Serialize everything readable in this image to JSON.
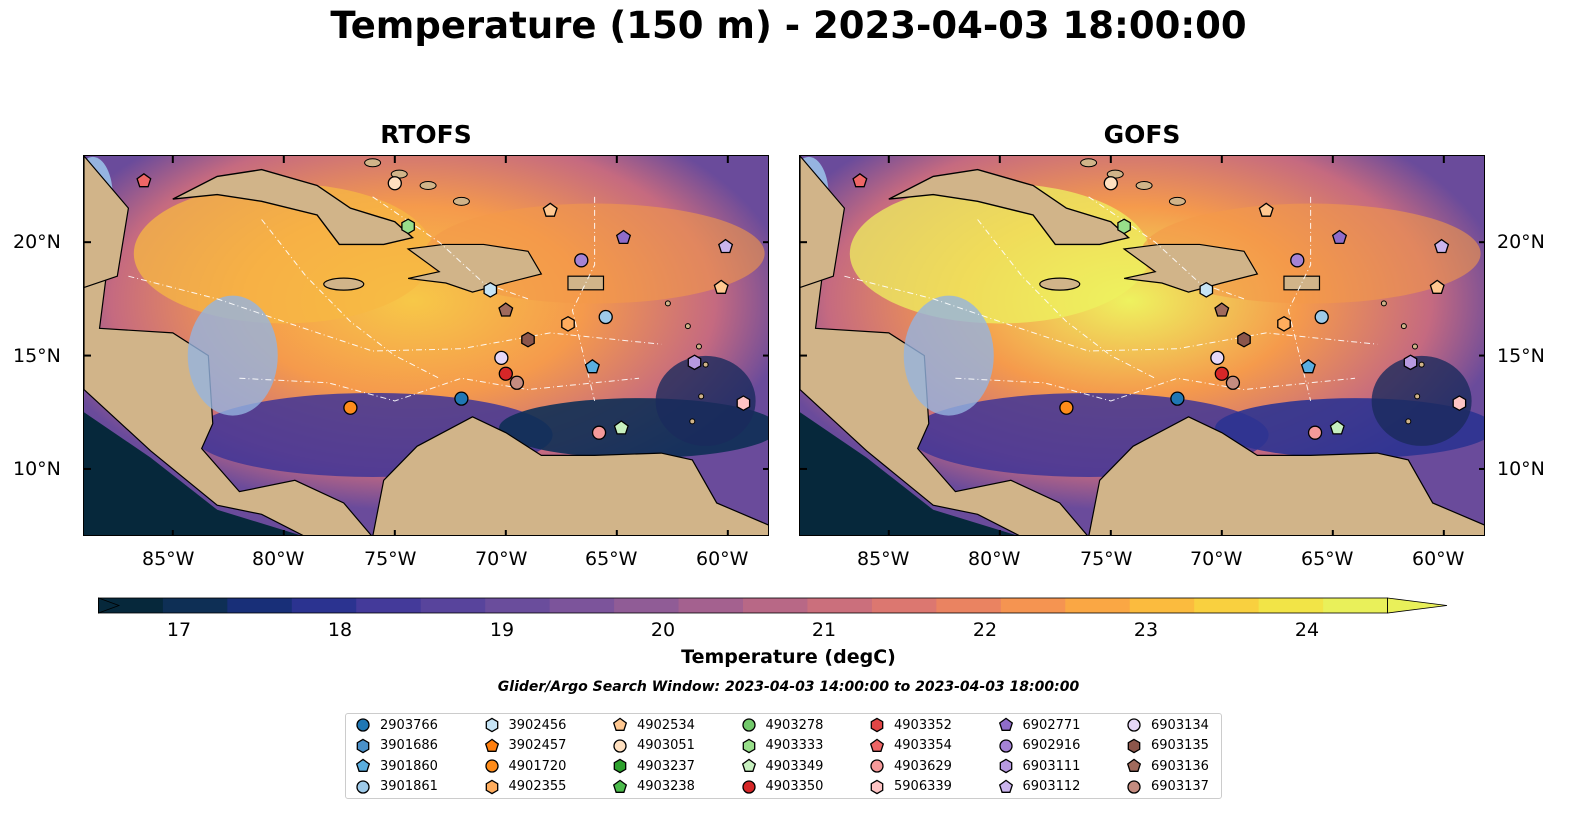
{
  "title": "Temperature (150 m) - 2023-04-03 18:00:00",
  "panels": [
    {
      "name": "RTOFS"
    },
    {
      "name": "GOFS"
    }
  ],
  "axes": {
    "lat_labels": [
      "20°N",
      "15°N",
      "10°N"
    ],
    "lon_labels": [
      "85°W",
      "80°W",
      "75°W",
      "70°W",
      "65°W",
      "60°W"
    ],
    "lon_range": [
      -89,
      -58.1
    ],
    "lat_range": [
      7.0,
      23.8
    ]
  },
  "colorbar": {
    "label": "Temperature (degC)",
    "ticks": [
      "17",
      "18",
      "19",
      "20",
      "21",
      "22",
      "23",
      "24"
    ],
    "min": 16.5,
    "max": 24.5,
    "extend": "both",
    "colors": [
      "#06283b",
      "#0e2f55",
      "#182f78",
      "#2b3390",
      "#443a9a",
      "#58449c",
      "#6a4d9c",
      "#7c549b",
      "#905c96",
      "#a4618f",
      "#b86886",
      "#cb6f7c",
      "#dc7770",
      "#ea8361",
      "#f59451",
      "#faa744",
      "#fbbb3e",
      "#f9d03f",
      "#f2e447",
      "#e9f05a"
    ]
  },
  "search_window": "Glider/Argo Search Window: 2023-04-03 14:00:00 to 2023-04-03 18:00:00",
  "legend": [
    {
      "id": "2903766",
      "marker": "circle",
      "color": "#1f77b4"
    },
    {
      "id": "3901686",
      "marker": "hexagon",
      "color": "#4a90c8"
    },
    {
      "id": "3901860",
      "marker": "pentagon",
      "color": "#5aaee0"
    },
    {
      "id": "3901861",
      "marker": "circle",
      "color": "#9ecae9"
    },
    {
      "id": "3902456",
      "marker": "hexagon",
      "color": "#c6e4f5"
    },
    {
      "id": "3902457",
      "marker": "pentagon",
      "color": "#ff7f0e"
    },
    {
      "id": "4901720",
      "marker": "circle",
      "color": "#ff8c1a"
    },
    {
      "id": "4902355",
      "marker": "hexagon",
      "color": "#ffad5e"
    },
    {
      "id": "4902534",
      "marker": "pentagon",
      "color": "#ffc891"
    },
    {
      "id": "4903051",
      "marker": "circle",
      "color": "#ffe0c0"
    },
    {
      "id": "4903237",
      "marker": "hexagon",
      "color": "#2ca02c"
    },
    {
      "id": "4903238",
      "marker": "pentagon",
      "color": "#4cbb4c"
    },
    {
      "id": "4903278",
      "marker": "circle",
      "color": "#72c96b"
    },
    {
      "id": "4903333",
      "marker": "hexagon",
      "color": "#98df8a"
    },
    {
      "id": "4903349",
      "marker": "pentagon",
      "color": "#c7f0bf"
    },
    {
      "id": "4903350",
      "marker": "circle",
      "color": "#d62728"
    },
    {
      "id": "4903352",
      "marker": "hexagon",
      "color": "#e04545"
    },
    {
      "id": "4903354",
      "marker": "pentagon",
      "color": "#ee6666"
    },
    {
      "id": "4903629",
      "marker": "circle",
      "color": "#f59a9a"
    },
    {
      "id": "5906339",
      "marker": "hexagon",
      "color": "#ffc4c4"
    },
    {
      "id": "6902771",
      "marker": "pentagon",
      "color": "#8f6cc9"
    },
    {
      "id": "6902916",
      "marker": "circle",
      "color": "#a583d4"
    },
    {
      "id": "6903111",
      "marker": "hexagon",
      "color": "#b79ae0"
    },
    {
      "id": "6903112",
      "marker": "pentagon",
      "color": "#cab4ec"
    },
    {
      "id": "6903134",
      "marker": "circle",
      "color": "#e6d7f7"
    },
    {
      "id": "6903135",
      "marker": "hexagon",
      "color": "#8c564b"
    },
    {
      "id": "6903136",
      "marker": "pentagon",
      "color": "#a06a5c"
    },
    {
      "id": "6903137",
      "marker": "circle",
      "color": "#c48c80"
    }
  ],
  "float_positions": [
    {
      "id": "4903354",
      "lon": -86.3,
      "lat": 22.7
    },
    {
      "id": "4903051",
      "lon": -75.0,
      "lat": 22.6
    },
    {
      "id": "4903333",
      "lon": -74.4,
      "lat": 20.7
    },
    {
      "id": "4902534",
      "lon": -68.0,
      "lat": 21.4
    },
    {
      "id": "6902771",
      "lon": -64.7,
      "lat": 20.2
    },
    {
      "id": "6902916",
      "lon": -66.6,
      "lat": 19.2
    },
    {
      "id": "6903112",
      "lon": -60.1,
      "lat": 19.8
    },
    {
      "id": "4902534",
      "lon": -60.3,
      "lat": 18.0
    },
    {
      "id": "3902456",
      "lon": -70.7,
      "lat": 17.9
    },
    {
      "id": "6903136",
      "lon": -70.0,
      "lat": 17.0
    },
    {
      "id": "4902355",
      "lon": -67.2,
      "lat": 16.4
    },
    {
      "id": "3901861",
      "lon": -65.5,
      "lat": 16.7
    },
    {
      "id": "6903135",
      "lon": -69.0,
      "lat": 15.7
    },
    {
      "id": "6903134",
      "lon": -70.2,
      "lat": 14.9
    },
    {
      "id": "4903350",
      "lon": -70.0,
      "lat": 14.2
    },
    {
      "id": "6903137",
      "lon": -69.5,
      "lat": 13.8
    },
    {
      "id": "3901860",
      "lon": -66.1,
      "lat": 14.5
    },
    {
      "id": "6903111",
      "lon": -61.5,
      "lat": 14.7
    },
    {
      "id": "4901720",
      "lon": -77.0,
      "lat": 12.7
    },
    {
      "id": "2903766",
      "lon": -72.0,
      "lat": 13.1
    },
    {
      "id": "4903349",
      "lon": -64.8,
      "lat": 11.8
    },
    {
      "id": "4903629",
      "lon": -65.8,
      "lat": 11.6
    },
    {
      "id": "5906339",
      "lon": -59.3,
      "lat": 12.9
    }
  ]
}
